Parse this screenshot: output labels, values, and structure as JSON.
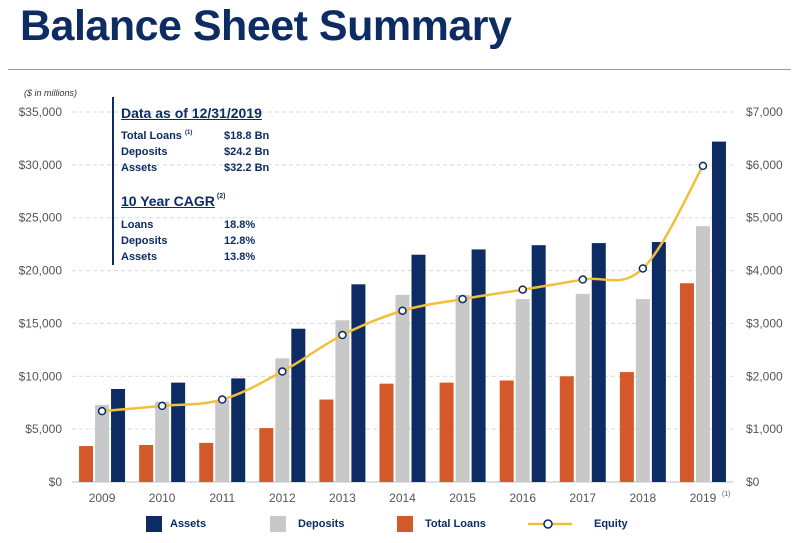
{
  "page": {
    "title": "Balance Sheet Summary",
    "units_note": "($ in millions)"
  },
  "callout": {
    "heading1": "Data as of 12/31/2019",
    "rows1": [
      {
        "label": "Total Loans",
        "sup": "(1)",
        "value": "$18.8 Bn"
      },
      {
        "label": "Deposits",
        "sup": "",
        "value": "$24.2 Bn"
      },
      {
        "label": "Assets",
        "sup": "",
        "value": "$32.2 Bn"
      }
    ],
    "heading2": "10 Year CAGR",
    "heading2_sup": "(2)",
    "rows2": [
      {
        "label": "Loans",
        "value": "18.8%"
      },
      {
        "label": "Deposits",
        "value": "12.8%"
      },
      {
        "label": "Assets",
        "value": "13.8%"
      }
    ]
  },
  "colors": {
    "assets": "#0c2c63",
    "deposits": "#c8c8c8",
    "loans": "#d4592a",
    "equity": "#f2bf3a",
    "grid": "#d9d9d9",
    "text": "#555555"
  },
  "chart_data": {
    "type": "bar",
    "categories": [
      "2009",
      "2010",
      "2011",
      "2012",
      "2013",
      "2014",
      "2015",
      "2016",
      "2017",
      "2018",
      "2019"
    ],
    "category_sup": {
      "2019": "(1)"
    },
    "series": [
      {
        "name": "Assets",
        "axis": "left",
        "values": [
          8800,
          9400,
          9800,
          14500,
          18700,
          21500,
          22000,
          22400,
          22600,
          22700,
          32200
        ]
      },
      {
        "name": "Deposits",
        "axis": "left",
        "values": [
          7300,
          7600,
          7800,
          11700,
          15300,
          17700,
          17700,
          17300,
          17800,
          17300,
          24200
        ]
      },
      {
        "name": "Total Loans",
        "axis": "left",
        "values": [
          3400,
          3500,
          3700,
          5100,
          7800,
          9300,
          9400,
          9600,
          10000,
          10400,
          18800
        ]
      },
      {
        "name": "Equity",
        "axis": "right",
        "type": "line",
        "values": [
          1340,
          1440,
          1560,
          2090,
          2780,
          3240,
          3460,
          3640,
          3830,
          4040,
          5980
        ]
      }
    ],
    "left_axis": {
      "min": 0,
      "max": 35000,
      "ticks": [
        "$0",
        "$5,000",
        "$10,000",
        "$15,000",
        "$20,000",
        "$25,000",
        "$30,000",
        "$35,000"
      ]
    },
    "right_axis": {
      "min": 0,
      "max": 7000,
      "ticks": [
        "$0",
        "$1,000",
        "$2,000",
        "$3,000",
        "$4,000",
        "$5,000",
        "$6,000",
        "$7,000"
      ]
    },
    "grid": true,
    "legend_position": "bottom",
    "legend": [
      "Assets",
      "Deposits",
      "Total Loans",
      "Equity"
    ]
  }
}
